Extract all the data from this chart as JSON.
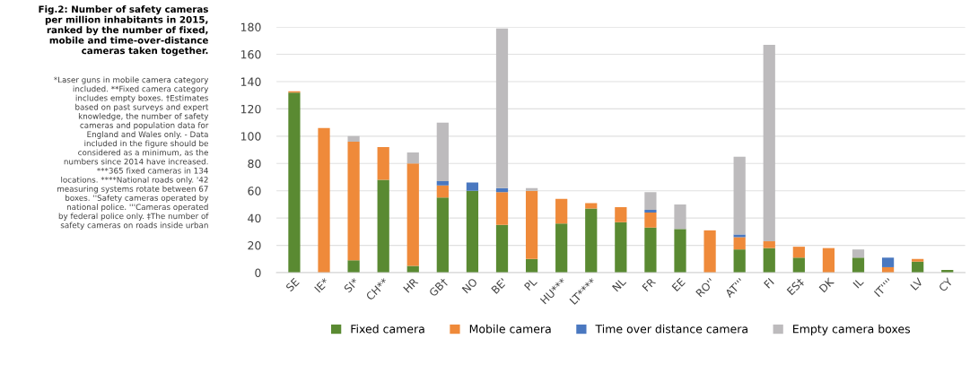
{
  "chart_data": {
    "type": "bar",
    "stacked": true,
    "title": "Fig.2: Number of safety cameras\nper million inhabitants in 2015,\nranked by the number of fixed,\nmobile and time-over-distance\ncameras taken together.",
    "annotations": [
      "*Laser guns in mobile camera category\nincluded. **Fixed camera category\nincludes empty boxes. †Estimates\nbased on past surveys and expert\nknowledge, the number of safety\ncameras and population data for\nEngland and Wales only. - Data\nincluded in the figure should be\nconsidered as a minimum, as the\nnumbers since 2014 have increased.\n***365 fixed cameras in 134\nlocations. ****National roads only. '42\nmeasuring systems rotate between 67\nboxes. ''Safety cameras operated by\nnational police. '''Cameras operated\nby federal police only. ‡The number of\nsafety cameras on roads inside urban"
    ],
    "categories": [
      "SE",
      "IE*",
      "SI*",
      "CH**",
      "HR",
      "GB†",
      "NO",
      "BE'",
      "PL",
      "HU***",
      "LT****",
      "NL",
      "FR",
      "EE",
      "RO''",
      "AT'''",
      "FI",
      "ES‡",
      "DK",
      "IL",
      "IT''''",
      "LV",
      "CY"
    ],
    "series": [
      {
        "name": "Fixed camera",
        "color": "#5a8a32",
        "values": [
          132,
          0,
          9,
          68,
          5,
          55,
          60,
          35,
          10,
          36,
          47,
          37,
          33,
          32,
          0,
          17,
          18,
          11,
          0,
          11,
          0,
          8,
          2
        ]
      },
      {
        "name": "Mobile camera",
        "color": "#ef8a3a",
        "values": [
          1,
          106,
          87,
          24,
          75,
          9,
          0,
          24,
          50,
          18,
          4,
          11,
          11,
          0,
          31,
          9,
          5,
          8,
          18,
          0,
          4,
          2,
          0
        ]
      },
      {
        "name": "Time over distance camera",
        "color": "#4a78c0",
        "values": [
          0,
          0,
          0,
          0,
          0,
          3,
          6,
          3,
          0,
          0,
          0,
          0,
          2,
          0,
          0,
          2,
          0,
          0,
          0,
          0,
          7,
          0,
          0
        ]
      },
      {
        "name": "Empty camera boxes",
        "color": "#bdbbbd",
        "values": [
          0,
          0,
          4,
          0,
          8,
          43,
          0,
          117,
          2,
          0,
          0,
          0,
          13,
          18,
          0,
          57,
          144,
          0,
          0,
          6,
          0,
          0,
          0
        ]
      }
    ],
    "ylim": [
      0,
      180
    ],
    "yticks": [
      0,
      20,
      40,
      60,
      80,
      100,
      120,
      140,
      160,
      180
    ],
    "grid": "y",
    "legend": "bottom"
  }
}
